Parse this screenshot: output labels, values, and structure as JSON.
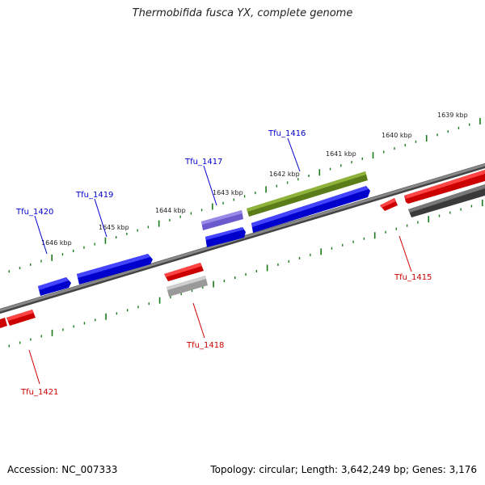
{
  "title": "Thermobifida fusca YX, complete genome",
  "footer": {
    "accession": "Accession: NC_007333",
    "summary": "Topology: circular; Length: 3,642,249 bp; Genes: 3,176"
  },
  "colors": {
    "forward_gene": "#0000ee",
    "reverse_gene": "#ee0000",
    "rna_gene": "#6b8e23",
    "pseudo_gene_light": "#7b68ee",
    "reverse_gray": "#aaaaaa",
    "reverse_dark": "#555555",
    "tick": "#1a7a1a",
    "backbone": "#777777",
    "forward_label": "#0000cc",
    "reverse_label": "#cc0000"
  },
  "tick_labels": [
    "1639 kbp",
    "1640 kbp",
    "1641 kbp",
    "1642 kbp",
    "1643 kbp",
    "1644 kbp",
    "1645 kbp",
    "1646 kbp"
  ],
  "gene_labels": {
    "tfu_1416": "Tfu_1416",
    "tfu_1417": "Tfu_1417",
    "tfu_1419": "Tfu_1419",
    "tfu_1420": "Tfu_1420",
    "tfu_1415": "Tfu_1415",
    "tfu_1418": "Tfu_1418",
    "tfu_1421": "Tfu_1421"
  }
}
